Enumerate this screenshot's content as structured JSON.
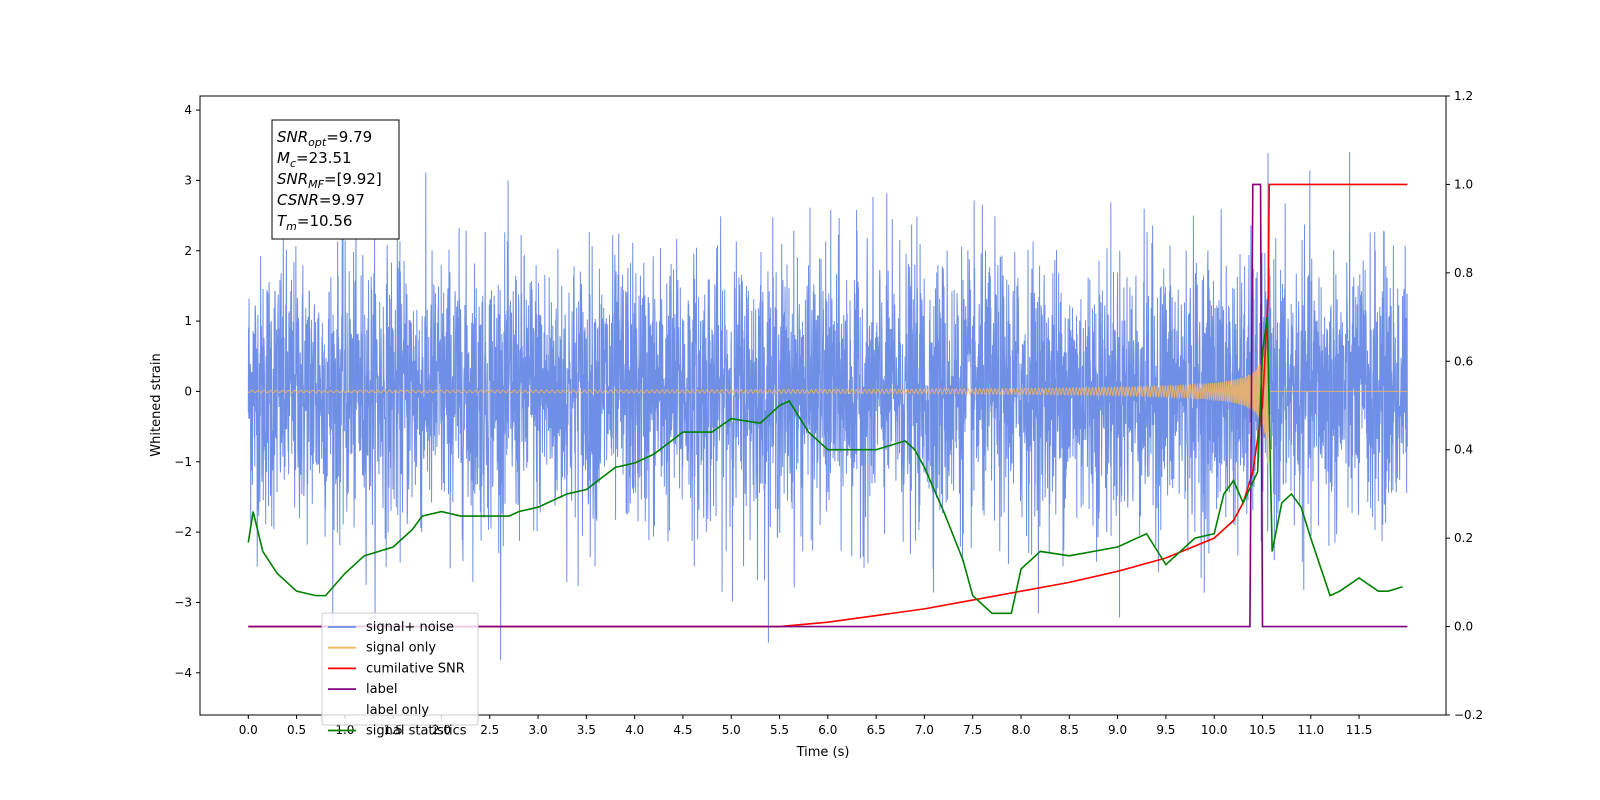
{
  "chart_data": {
    "type": "line",
    "title": "",
    "xlabel": "Time (s)",
    "ylabel": "Whitened strain",
    "xlim": [
      -0.5,
      12.4
    ],
    "ylim": [
      -4.6,
      4.2
    ],
    "y2lim": [
      -0.2,
      1.2
    ],
    "x_ticks": [
      "0.0",
      "0.5",
      "1.0",
      "1.5",
      "2.0",
      "2.5",
      "3.0",
      "3.5",
      "4.0",
      "4.5",
      "5.0",
      "5.5",
      "6.0",
      "6.5",
      "7.0",
      "7.5",
      "8.0",
      "8.5",
      "9.0",
      "9.5",
      "10.0",
      "10.5",
      "11.0",
      "11.5"
    ],
    "y_ticks": [
      "4",
      "3",
      "2",
      "1",
      "0",
      "−1",
      "−2",
      "−3",
      "−4"
    ],
    "y2_ticks": [
      "1.2",
      "1.0",
      "0.8",
      "0.6",
      "0.4",
      "0.2",
      "0.0",
      "−0.2"
    ],
    "grid": false,
    "legend_position": "lower-left",
    "info_box": {
      "lines": [
        {
          "main": "SNR",
          "sub": "opt",
          "rest": "=9.79"
        },
        {
          "main": "M",
          "sub": "c",
          "rest": "=23.51"
        },
        {
          "main": "SNR",
          "sub": "MF",
          "rest": "=[9.92]"
        },
        {
          "main": "CSNR",
          "sub": "",
          "rest": "=9.97"
        },
        {
          "main": "T",
          "sub": "m",
          "rest": "=10.56"
        }
      ]
    },
    "series": [
      {
        "name": "signal+ noise",
        "axis": "left",
        "color": "#6f8fe6",
        "x_range": [
          0.0,
          12.0
        ],
        "noise_std": 0.95,
        "max": 3.7,
        "min": -4.1
      },
      {
        "name": "signal only",
        "axis": "left",
        "color": "#f5b560",
        "x_range": [
          0.0,
          12.0
        ],
        "merger_time": 10.56,
        "peak_amplitude": 1.3
      },
      {
        "name": "cumilative SNR",
        "axis": "right",
        "color": "#ff0000",
        "x": [
          0.0,
          5.5,
          6.0,
          6.5,
          7.0,
          7.5,
          8.0,
          8.5,
          9.0,
          9.5,
          10.0,
          10.2,
          10.3,
          10.4,
          10.5,
          10.56,
          10.57,
          12.0
        ],
        "values": [
          0.0,
          0.0,
          0.01,
          0.025,
          0.04,
          0.06,
          0.08,
          0.1,
          0.125,
          0.155,
          0.2,
          0.24,
          0.28,
          0.35,
          0.5,
          0.75,
          1.0,
          1.0
        ]
      },
      {
        "name": "label",
        "axis": "right",
        "color": "#800080",
        "x": [
          0.0,
          10.37,
          10.4,
          10.48,
          10.5,
          11.0,
          12.0
        ],
        "values": [
          0.0,
          0.0,
          1.0,
          1.0,
          0.0,
          0.0,
          0.0
        ]
      },
      {
        "name": "label only",
        "axis": "right",
        "color": "#ffffff",
        "x": [],
        "values": []
      },
      {
        "name": "signal statistics",
        "axis": "right",
        "color": "#008000",
        "x": [
          0.0,
          0.05,
          0.15,
          0.3,
          0.5,
          0.7,
          0.8,
          1.0,
          1.2,
          1.5,
          1.7,
          1.8,
          2.0,
          2.2,
          2.5,
          2.7,
          2.8,
          3.0,
          3.3,
          3.5,
          3.8,
          4.0,
          4.2,
          4.5,
          4.8,
          5.0,
          5.3,
          5.5,
          5.6,
          5.8,
          6.0,
          6.3,
          6.5,
          6.8,
          6.9,
          7.0,
          7.2,
          7.4,
          7.5,
          7.7,
          7.9,
          8.0,
          8.2,
          8.5,
          9.0,
          9.3,
          9.5,
          9.8,
          10.0,
          10.1,
          10.2,
          10.3,
          10.45,
          10.5,
          10.55,
          10.6,
          10.7,
          10.8,
          10.9,
          11.0,
          11.2,
          11.3,
          11.5,
          11.7,
          11.8,
          11.95
        ],
        "values": [
          0.19,
          0.26,
          0.17,
          0.12,
          0.08,
          0.07,
          0.07,
          0.12,
          0.16,
          0.18,
          0.22,
          0.25,
          0.26,
          0.25,
          0.25,
          0.25,
          0.26,
          0.27,
          0.3,
          0.31,
          0.36,
          0.37,
          0.39,
          0.44,
          0.44,
          0.47,
          0.46,
          0.5,
          0.51,
          0.44,
          0.4,
          0.4,
          0.4,
          0.42,
          0.4,
          0.36,
          0.26,
          0.15,
          0.07,
          0.03,
          0.03,
          0.13,
          0.17,
          0.16,
          0.18,
          0.21,
          0.14,
          0.2,
          0.21,
          0.3,
          0.33,
          0.28,
          0.35,
          0.62,
          0.7,
          0.17,
          0.28,
          0.3,
          0.27,
          0.2,
          0.07,
          0.08,
          0.11,
          0.08,
          0.08,
          0.09
        ]
      }
    ]
  }
}
